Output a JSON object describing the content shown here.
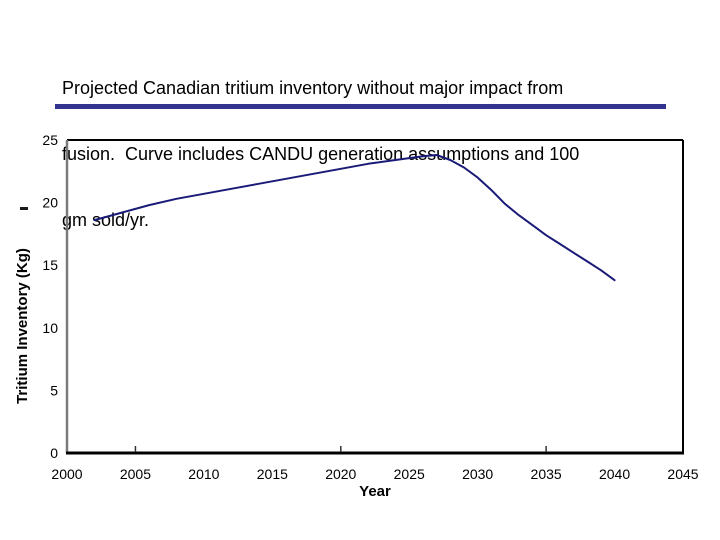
{
  "slide": {
    "caption_lines": [
      "Projected Canadian tritium inventory without major impact from",
      "fusion.  Curve includes CANDU generation assumptions and 100",
      "gm sold/yr."
    ],
    "accent_bar_color": "#333391",
    "stray_mark": "-"
  },
  "chart_data": {
    "type": "line",
    "title": "Projected Canadian tritium inventory without major impact from fusion.  Curve includes CANDU generation assumptions and 100 gm sold/yr.",
    "xlabel": "Year",
    "ylabel": "Tritium Inventory (Kg)",
    "xlim": [
      2000,
      2045
    ],
    "ylim": [
      0,
      25
    ],
    "x_ticks": [
      2000,
      2005,
      2010,
      2015,
      2020,
      2025,
      2030,
      2035,
      2040,
      2045
    ],
    "y_ticks": [
      0,
      5,
      10,
      15,
      20,
      25
    ],
    "x_tick_marks": [
      2005,
      2020,
      2035
    ],
    "grid": false,
    "legend_position": "none",
    "line_color": "#1a1a78",
    "frame_color": "#000000",
    "left_axis_color": "#7a7a7a",
    "series": [
      {
        "name": "Tritium inventory",
        "points": [
          [
            2002,
            18.6
          ],
          [
            2004,
            19.2
          ],
          [
            2006,
            19.8
          ],
          [
            2008,
            20.3
          ],
          [
            2010,
            20.7
          ],
          [
            2012,
            21.1
          ],
          [
            2014,
            21.5
          ],
          [
            2016,
            21.9
          ],
          [
            2018,
            22.3
          ],
          [
            2020,
            22.7
          ],
          [
            2022,
            23.1
          ],
          [
            2024,
            23.4
          ],
          [
            2026,
            23.7
          ],
          [
            2027,
            23.8
          ],
          [
            2028,
            23.4
          ],
          [
            2029,
            22.8
          ],
          [
            2030,
            22.0
          ],
          [
            2031,
            21.0
          ],
          [
            2032,
            19.9
          ],
          [
            2033,
            19.0
          ],
          [
            2034,
            18.2
          ],
          [
            2035,
            17.4
          ],
          [
            2036,
            16.7
          ],
          [
            2037,
            16.0
          ],
          [
            2038,
            15.3
          ],
          [
            2039,
            14.6
          ],
          [
            2040,
            13.8
          ]
        ]
      }
    ]
  }
}
